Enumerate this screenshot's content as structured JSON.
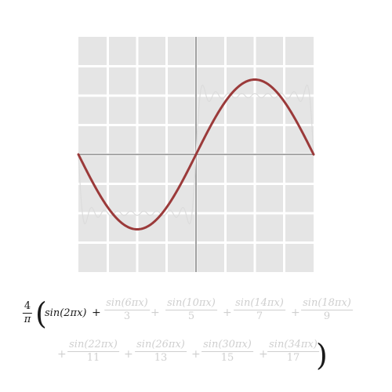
{
  "chart_data": {
    "type": "line",
    "title": "",
    "xlabel": "",
    "ylabel": "",
    "xlim": [
      -1,
      1
    ],
    "ylim": [
      -2,
      2
    ],
    "grid": true,
    "grid_divisions": {
      "x": 8,
      "y": 8
    },
    "legend": "none",
    "series": [
      {
        "role": "highlighted",
        "terms": [
          1
        ],
        "color": "#9b3a3a"
      },
      {
        "role": "full-sum",
        "terms": [
          1,
          3,
          5,
          7,
          9,
          11,
          13,
          15,
          17
        ],
        "color": "#dcdcdc"
      }
    ],
    "colors": {
      "plot_background": "#e5e5e5",
      "grid_lines": "#ffffff",
      "axes": "#8a8a8a",
      "active_text": "#1a1a1a",
      "faded_text": "#cfcfcf"
    }
  },
  "formula": {
    "prefix": {
      "num": "4",
      "den": "π"
    },
    "first_term": "sin(2πx)",
    "terms": [
      {
        "num": "sin(6πx)",
        "den": "3"
      },
      {
        "num": "sin(10πx)",
        "den": "5"
      },
      {
        "num": "sin(14πx)",
        "den": "7"
      },
      {
        "num": "sin(18πx)",
        "den": "9"
      },
      {
        "num": "sin(22πx)",
        "den": "11"
      },
      {
        "num": "sin(26πx)",
        "den": "13"
      },
      {
        "num": "sin(30πx)",
        "den": "15"
      },
      {
        "num": "sin(34πx)",
        "den": "17"
      }
    ],
    "plus": "+",
    "open_paren": "(",
    "close_paren": ")"
  }
}
